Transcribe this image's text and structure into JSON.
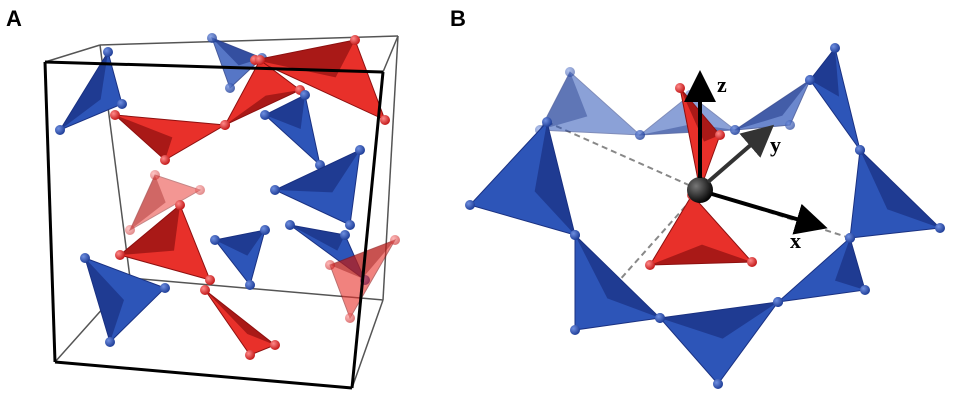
{
  "panels": [
    {
      "label": "A"
    },
    {
      "label": "B",
      "axes": {
        "z": "z",
        "y": "y",
        "x": "x"
      }
    }
  ]
}
